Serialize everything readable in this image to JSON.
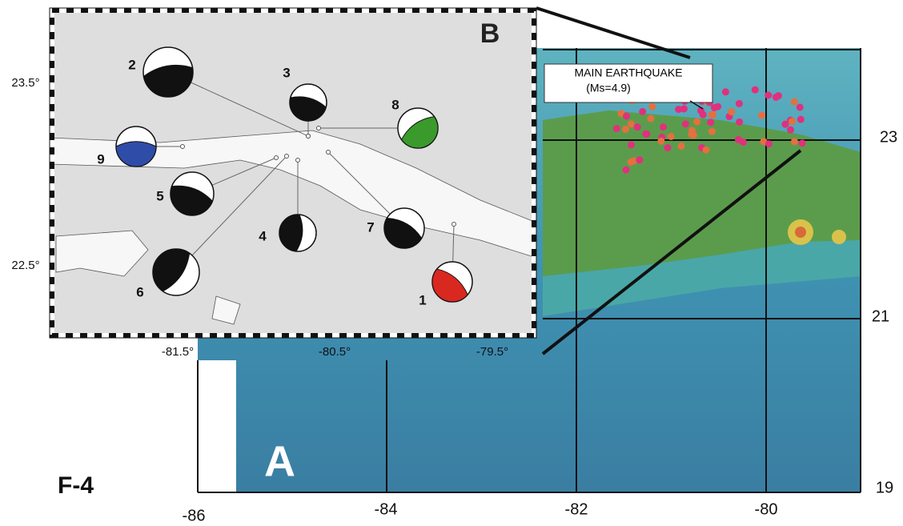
{
  "figure_label": "F-4",
  "panel_a": {
    "label": "A",
    "annotation": {
      "title": "MAIN EARTHQUAKE",
      "subtitle": "(Ms=4.9)"
    },
    "lat_labels": [
      "23",
      "21",
      "19"
    ],
    "lon_labels": [
      "-86",
      "-84",
      "-82",
      "-80"
    ]
  },
  "panel_b": {
    "label": "B",
    "lat_labels": [
      "23.5°",
      "22.5°"
    ],
    "lon_labels": [
      "-81.5°",
      "-80.5°",
      "-79.5°"
    ],
    "mechanisms": [
      "1",
      "2",
      "3",
      "4",
      "5",
      "6",
      "7",
      "8",
      "9"
    ]
  }
}
